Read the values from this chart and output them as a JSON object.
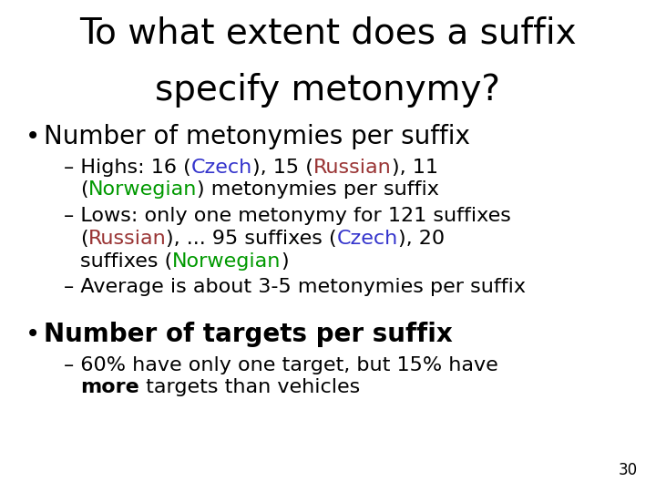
{
  "title_line1": "To what extent does a suffix",
  "title_line2": "specify metonymy?",
  "title_fontsize": 28,
  "title_color": "#000000",
  "bullet1": "Number of metonymies per suffix",
  "bullet1_fontsize": 20,
  "bullet2": "Number of targets per suffix",
  "bullet2_fontsize": 20,
  "sub_fontsize": 16,
  "page_number": "30",
  "black": "#000000",
  "czech_color": "#3333cc",
  "russian_color": "#993333",
  "norwegian_color": "#009900"
}
